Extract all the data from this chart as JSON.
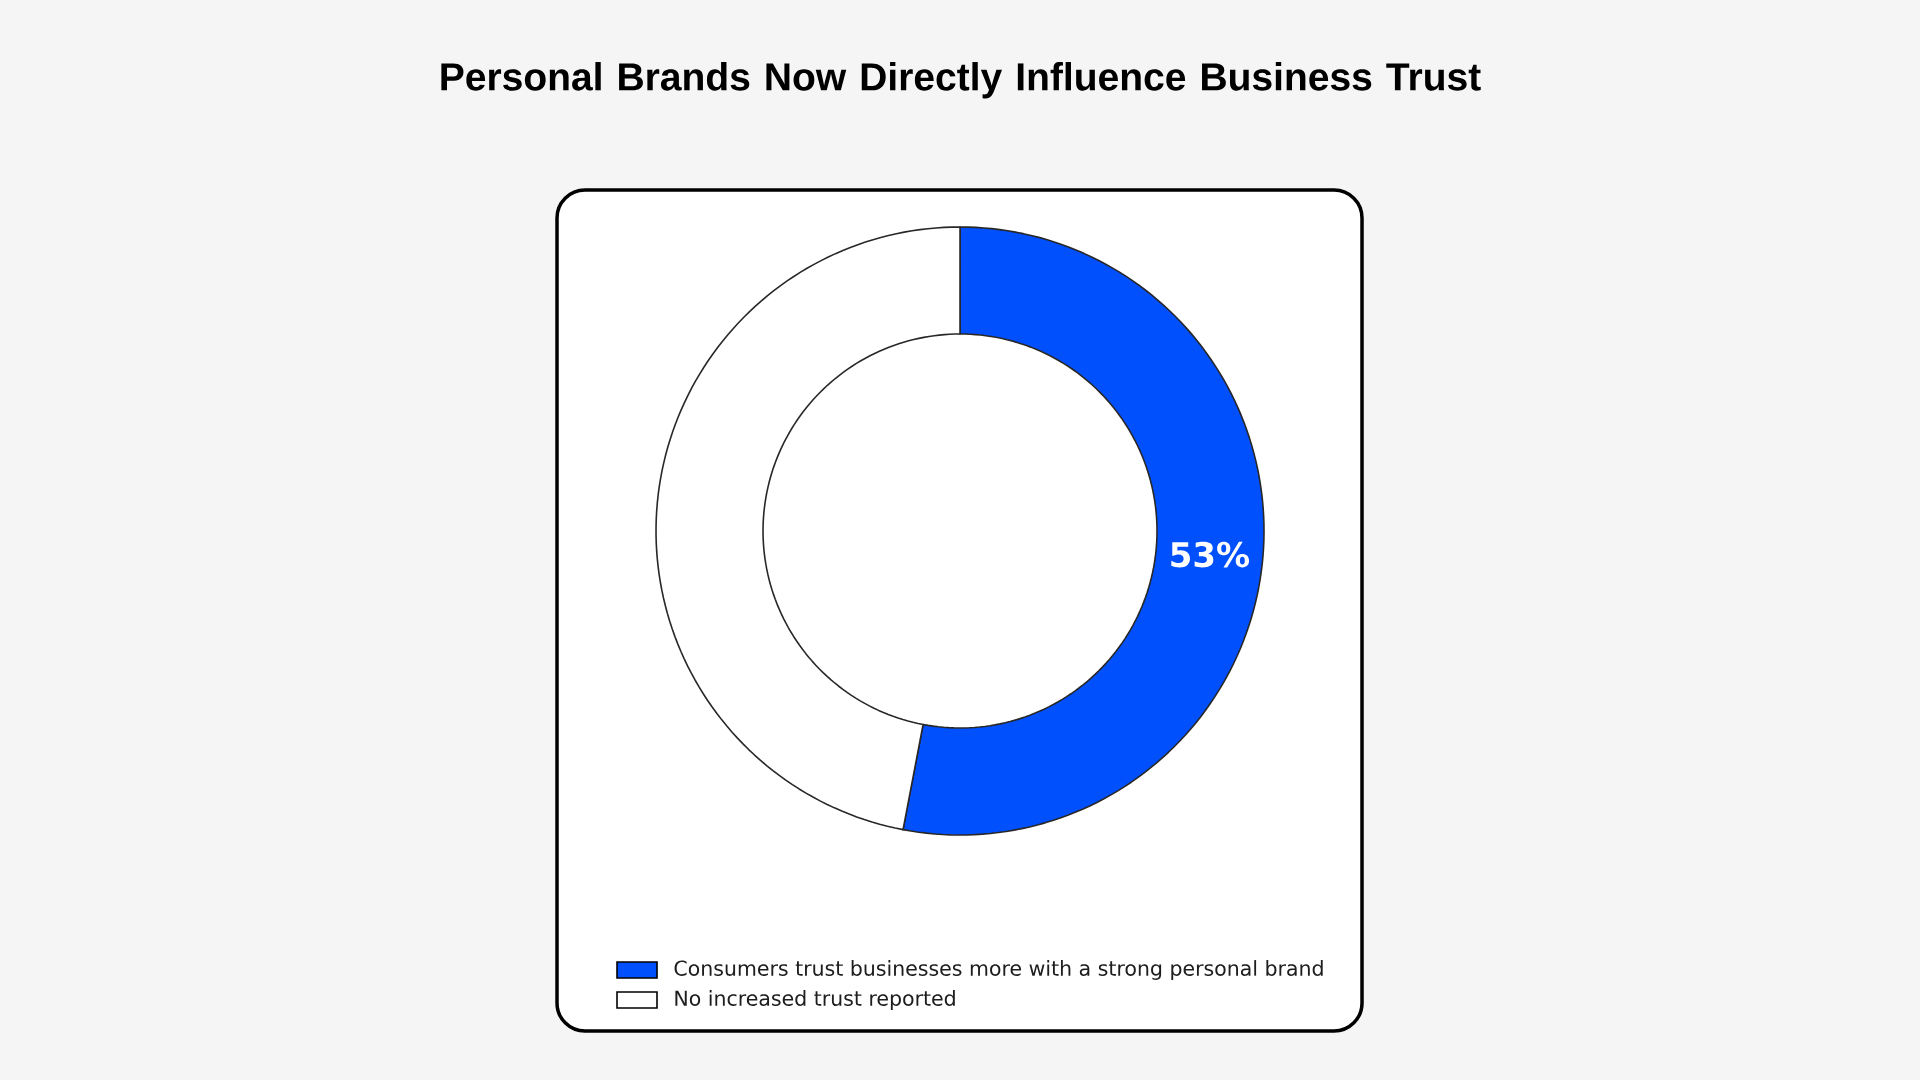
{
  "chart_data": {
    "type": "donut",
    "title": "Personal Brands Now Directly Influence Business Trust",
    "categories": [
      "Consumers trust businesses more with a strong personal brand",
      "No increased trust reported"
    ],
    "values": [
      53,
      47
    ],
    "colors": [
      "#0050fe",
      "#ffffff"
    ],
    "value_labels": [
      "53%",
      null
    ],
    "legend": "bottom"
  }
}
